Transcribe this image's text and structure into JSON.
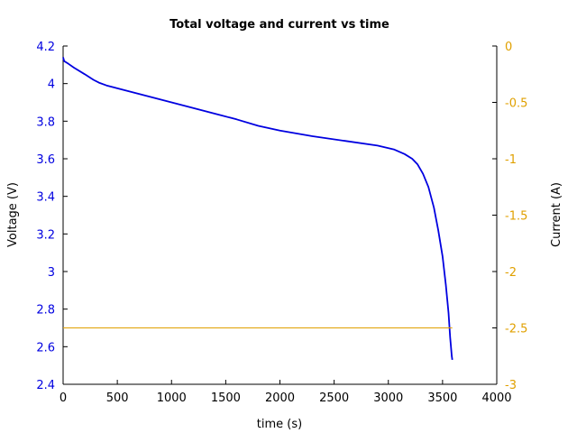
{
  "chart_data": {
    "type": "line",
    "title": "Total voltage and current vs time",
    "xlabel": "time (s)",
    "ylabel": "Voltage (V)",
    "y2label": "Current (A)",
    "xlim": [
      0,
      4000
    ],
    "ylim": [
      2.4,
      4.2
    ],
    "y2lim": [
      -3,
      0
    ],
    "xticks": [
      0,
      500,
      1000,
      1500,
      2000,
      2500,
      3000,
      3500,
      4000
    ],
    "yticks": [
      2.4,
      2.6,
      2.8,
      3.0,
      3.2,
      3.4,
      3.6,
      3.8,
      4.0,
      4.2
    ],
    "yticklabels": [
      "2.4",
      "2.6",
      "2.8",
      "3",
      "3.2",
      "3.4",
      "3.6",
      "3.8",
      "4",
      "4.2"
    ],
    "y2ticks": [
      -3,
      -2.5,
      -2,
      -1.5,
      -1,
      -0.5,
      0
    ],
    "y2ticklabels": [
      "-3",
      "-2.5",
      "-2",
      "-1.5",
      "-1",
      "-0.5",
      "0"
    ],
    "grid": false,
    "colors": {
      "voltage": "#0000e0",
      "current": "#e0a000",
      "axis": "#000000"
    },
    "series": [
      {
        "axis": "left",
        "color": "#0000e0",
        "x": [
          0,
          10,
          50,
          100,
          200,
          280,
          330,
          400,
          500,
          700,
          1000,
          1300,
          1600,
          1800,
          2000,
          2300,
          2600,
          2900,
          3050,
          3150,
          3220,
          3270,
          3320,
          3370,
          3420,
          3460,
          3500,
          3530,
          3555,
          3570,
          3585,
          3590
        ],
        "y": [
          4.14,
          4.12,
          4.105,
          4.085,
          4.05,
          4.02,
          4.005,
          3.99,
          3.975,
          3.945,
          3.9,
          3.855,
          3.81,
          3.775,
          3.75,
          3.72,
          3.695,
          3.67,
          3.65,
          3.625,
          3.6,
          3.57,
          3.52,
          3.45,
          3.34,
          3.22,
          3.08,
          2.93,
          2.78,
          2.65,
          2.55,
          2.53
        ]
      },
      {
        "axis": "right",
        "color": "#e0a000",
        "x": [
          0,
          3590
        ],
        "y": [
          -2.5,
          -2.5
        ]
      }
    ]
  }
}
